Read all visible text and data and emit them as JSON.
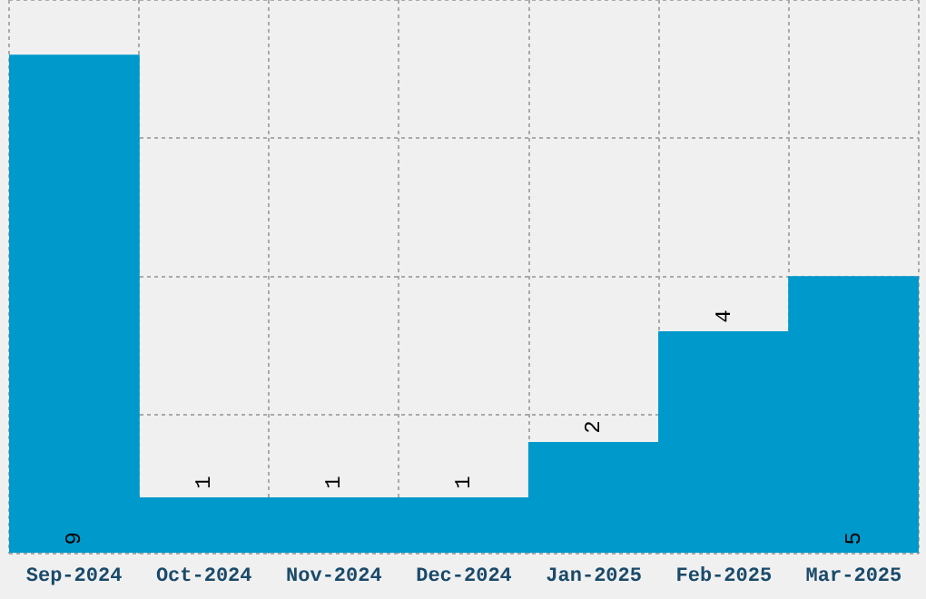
{
  "chart_data": {
    "type": "bar",
    "categories": [
      "Sep-2024",
      "Oct-2024",
      "Nov-2024",
      "Dec-2024",
      "Jan-2025",
      "Feb-2025",
      "Mar-2025"
    ],
    "values": [
      9,
      1,
      1,
      1,
      2,
      4,
      5
    ],
    "color": "#0099cc",
    "ylim": [
      0,
      10
    ],
    "yticks": [
      {
        "value": 0,
        "label": null
      },
      {
        "value": 2.5,
        "label": null
      },
      {
        "value": 5,
        "label": null
      },
      {
        "value": 7.5,
        "label": null
      },
      {
        "value": 10,
        "label": null
      }
    ],
    "tick_labels": "x",
    "grid": true,
    "data_labels": true
  }
}
